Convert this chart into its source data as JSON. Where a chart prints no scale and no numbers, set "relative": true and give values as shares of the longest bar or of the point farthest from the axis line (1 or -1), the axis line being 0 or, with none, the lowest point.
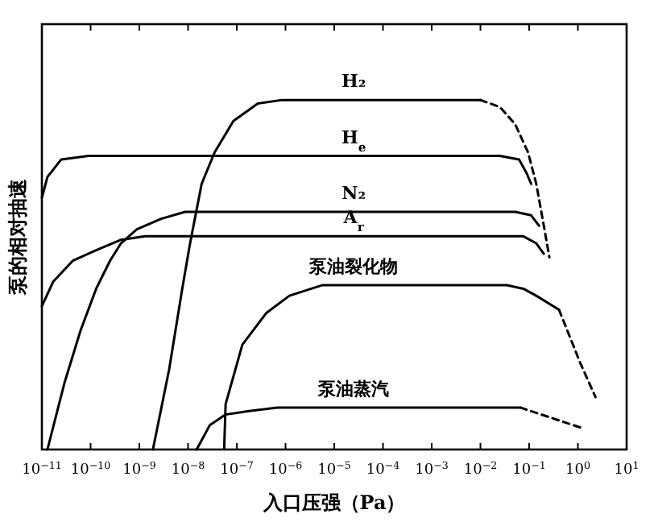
{
  "chart_data": {
    "type": "line",
    "relative": true,
    "log": "x",
    "xlim": [
      1e-11,
      10
    ],
    "xticks": [
      {
        "value": 1e-11,
        "label": "10$^{−11}$"
      },
      {
        "value": 1e-10,
        "label": "10$^{−10}$"
      },
      {
        "value": 1e-09,
        "label": "10$^{−9}$"
      },
      {
        "value": 1e-08,
        "label": "10$^{−8}$"
      },
      {
        "value": 1e-07,
        "label": "10$^{−7}$"
      },
      {
        "value": 1e-06,
        "label": "10$^{−6}$"
      },
      {
        "value": 1e-05,
        "label": "10$^{−5}$"
      },
      {
        "value": 0.0001,
        "label": "10$^{−4}$"
      },
      {
        "value": 0.001,
        "label": "10$^{−3}$"
      },
      {
        "value": 0.01,
        "label": "10$^{−2}$"
      },
      {
        "value": 0.1,
        "label": "10$^{−1}$"
      },
      {
        "value": 1,
        "label": "10$^{0}$"
      },
      {
        "value": 10,
        "label": "10$^{1}$"
      }
    ],
    "xlabel": "入口压强（Pa）",
    "ylabel": "泵的相对抽速",
    "grid": false,
    "legend": false,
    "series": [
      {
        "name": "H₂",
        "color": "#000000",
        "line_style": "solid",
        "x": [
          1.9e-09,
          4.1e-09,
          7.6e-09,
          1.1e-08,
          1.9e-08,
          3.5e-08,
          8.5e-08,
          2.7e-07,
          8.5e-07,
          0.01
        ],
        "values": [
          0,
          0.23,
          0.46,
          0.59,
          0.76,
          0.85,
          0.94,
          0.99,
          1,
          1
        ]
      },
      {
        "color": "#000000",
        "line_style": "dashed",
        "x": [
          0.01,
          0.025,
          0.052,
          0.095,
          0.14,
          0.2,
          0.26
        ],
        "values": [
          1,
          0.98,
          0.93,
          0.85,
          0.76,
          0.64,
          0.55
        ]
      },
      {
        "name": "H$_{e}$",
        "color": "#000000",
        "line_style": "solid",
        "x": [
          1e-11,
          1.3e-11,
          2.5e-11,
          9.1e-11,
          0.025,
          0.062,
          0.089,
          0.11
        ],
        "values": [
          0.72,
          0.78,
          0.83,
          0.84,
          0.84,
          0.83,
          0.79,
          0.76
        ]
      },
      {
        "name": "N₂",
        "color": "#000000",
        "line_style": "solid",
        "x": [
          1.3e-11,
          2.9e-11,
          6.2e-11,
          1.3e-10,
          2.5e-10,
          4.2e-10,
          8.9e-10,
          2.8e-09,
          8.7e-09,
          2.3e-08,
          0.052,
          0.11,
          0.16
        ],
        "values": [
          0,
          0.19,
          0.34,
          0.46,
          0.54,
          0.59,
          0.63,
          0.66,
          0.68,
          0.68,
          0.68,
          0.67,
          0.64
        ]
      },
      {
        "name": "A$_{r}$",
        "color": "#000000",
        "line_style": "solid",
        "x": [
          1e-11,
          1.7e-11,
          4.3e-11,
          1.3e-10,
          4.2e-10,
          1.3e-09,
          0.076,
          0.14,
          0.2
        ],
        "values": [
          0.41,
          0.48,
          0.54,
          0.57,
          0.6,
          0.61,
          0.61,
          0.59,
          0.56
        ]
      },
      {
        "name": "泵油裂化物",
        "color": "#000000",
        "line_style": "solid",
        "x": [
          5.5e-08,
          5.9e-08,
          1.3e-07,
          4e-07,
          1.2e-06,
          5.6e-06,
          5.5e-05,
          0.035,
          0.076,
          0.14,
          0.41
        ],
        "values": [
          0,
          0.13,
          0.3,
          0.39,
          0.44,
          0.47,
          0.47,
          0.47,
          0.46,
          0.44,
          0.4
        ]
      },
      {
        "color": "#000000",
        "line_style": "dashed",
        "x": [
          0.41,
          1.1,
          2.3
        ],
        "values": [
          0.4,
          0.25,
          0.15
        ]
      },
      {
        "name": "泵油蒸汽",
        "color": "#000000",
        "line_style": "solid",
        "x": [
          1.5e-08,
          2.8e-08,
          5.9e-08,
          1.8e-07,
          6.8e-07,
          0.066
        ],
        "values": [
          0,
          0.07,
          0.1,
          0.11,
          0.12,
          0.12
        ]
      },
      {
        "color": "#000000",
        "line_style": "dashed",
        "x": [
          0.066,
          1.3
        ],
        "values": [
          0.12,
          0.06
        ]
      }
    ]
  }
}
